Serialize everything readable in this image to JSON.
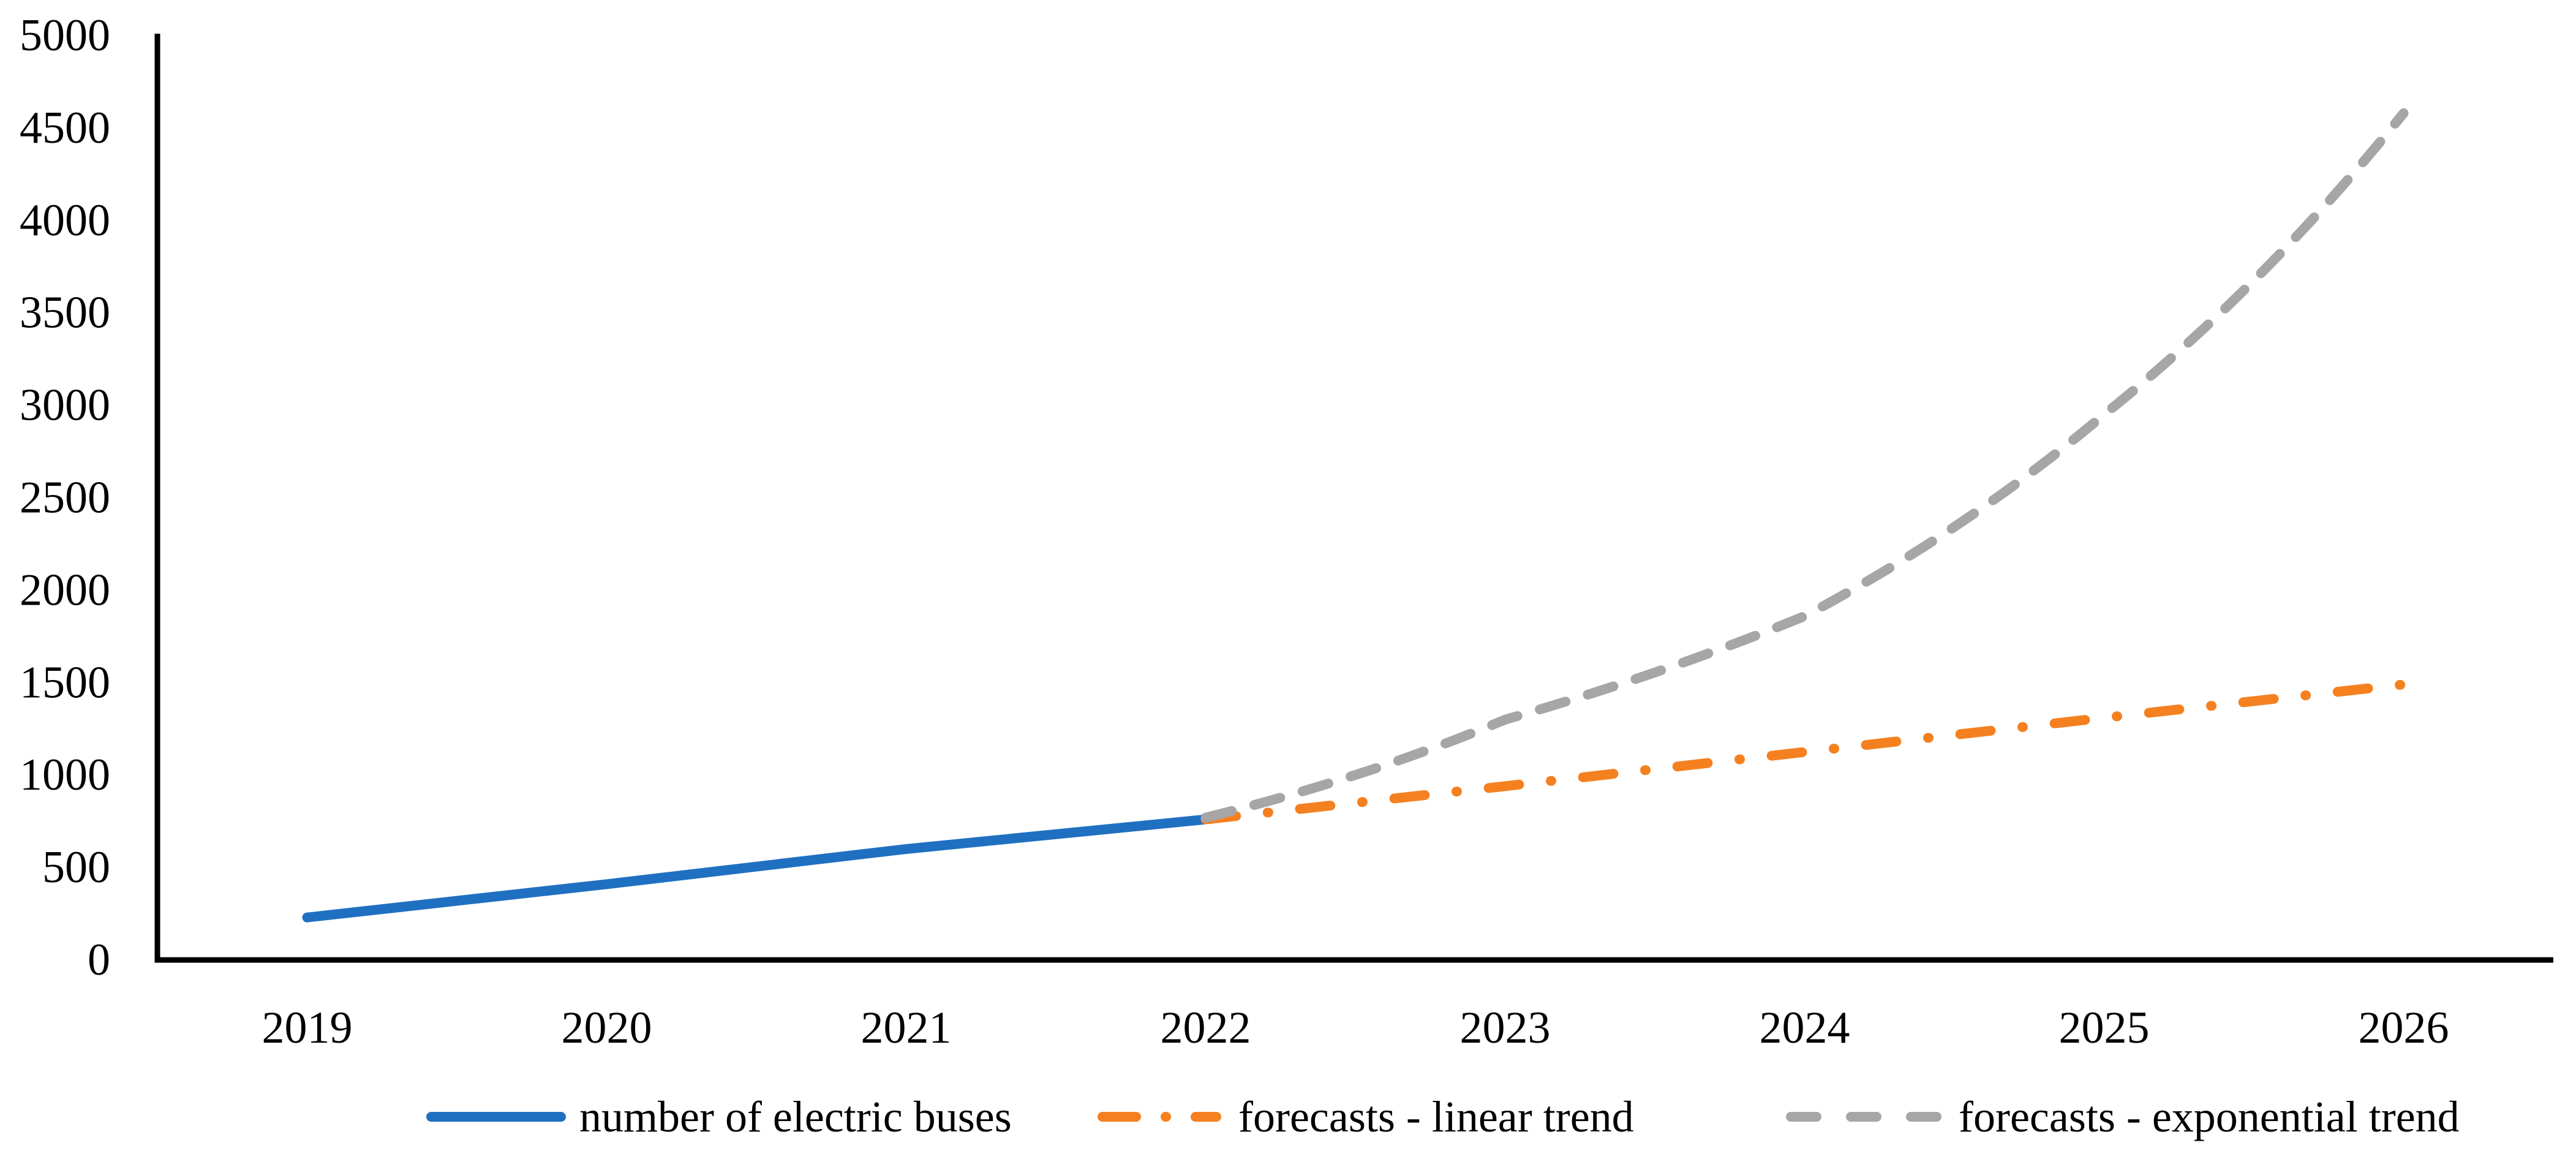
{
  "figure": {
    "background": "#FFFFFF"
  },
  "chart_data": {
    "type": "line",
    "title": "",
    "xlabel": "",
    "ylabel": "",
    "ylim": [
      0,
      5000
    ],
    "ytick_step": 500,
    "y_tick_labels": [
      "0",
      "500",
      "1000",
      "1500",
      "2000",
      "2500",
      "3000",
      "3500",
      "4000",
      "4500",
      "5000"
    ],
    "categories": [
      "2019",
      "2020",
      "2021",
      "2022",
      "2023",
      "2024",
      "2025",
      "2026"
    ],
    "grid": false,
    "legend_position": "bottom-center",
    "axis_color": "#000000",
    "text_color": "#000000",
    "series": [
      {
        "name": "number of electric buses",
        "line_style": "solid",
        "color": "#1F70C1",
        "x": [
          "2019",
          "2020",
          "2021",
          "2022"
        ],
        "values": [
          230,
          410,
          600,
          760
        ]
      },
      {
        "name": "forecasts - linear trend",
        "line_style": "dash-dot",
        "color": "#F58020",
        "x": [
          "2022",
          "2023",
          "2024",
          "2025",
          "2026"
        ],
        "values": [
          760,
          940,
          1125,
          1310,
          1490
        ]
      },
      {
        "name": "forecasts - exponential trend",
        "line_style": "dashed",
        "color": "#A6A6A6",
        "x": [
          "2022",
          "2023",
          "2024",
          "2025",
          "2026"
        ],
        "values": [
          770,
          1300,
          1860,
          2950,
          4580
        ],
        "interpolation": "smooth-exponential"
      }
    ]
  }
}
